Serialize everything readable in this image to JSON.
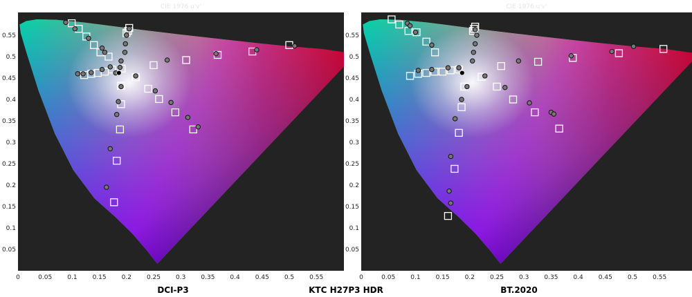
{
  "figure": {
    "caption_center": "KTC H27P3 HDR"
  },
  "chart_data": [
    {
      "type": "scatter",
      "title": "CIE 1976 u'v'",
      "caption": "DCI-P3",
      "xlim": [
        0,
        0.6
      ],
      "ylim": [
        0,
        0.6
      ],
      "x_ticks": [
        "0",
        "0.05",
        "0.1",
        "0.15",
        "0.2",
        "0.25",
        "0.3",
        "0.35",
        "0.4",
        "0.45",
        "0.5",
        "0.55"
      ],
      "y_ticks": [
        "0.05",
        "0.1",
        "0.15",
        "0.2",
        "0.25",
        "0.3",
        "0.35",
        "0.4",
        "0.45",
        "0.5",
        "0.55"
      ],
      "background_color": "#232323",
      "series": [
        {
          "marker": "square",
          "points": [
            [
              0.099,
              0.578
            ],
            [
              0.112,
              0.565
            ],
            [
              0.126,
              0.547
            ],
            [
              0.14,
              0.527
            ],
            [
              0.152,
              0.51
            ],
            [
              0.167,
              0.5
            ],
            [
              0.122,
              0.457
            ],
            [
              0.135,
              0.46
            ],
            [
              0.147,
              0.462
            ],
            [
              0.16,
              0.465
            ],
            [
              0.173,
              0.47
            ],
            [
              0.191,
              0.472
            ],
            [
              0.205,
              0.567
            ],
            [
              0.203,
              0.56
            ],
            [
              0.2,
              0.555
            ],
            [
              0.19,
              0.432
            ],
            [
              0.19,
              0.389
            ],
            [
              0.188,
              0.33
            ],
            [
              0.182,
              0.257
            ],
            [
              0.177,
              0.16
            ],
            [
              0.217,
              0.452
            ],
            [
              0.25,
              0.48
            ],
            [
              0.31,
              0.492
            ],
            [
              0.368,
              0.504
            ],
            [
              0.432,
              0.512
            ],
            [
              0.5,
              0.527
            ],
            [
              0.24,
              0.425
            ],
            [
              0.26,
              0.401
            ],
            [
              0.29,
              0.37
            ],
            [
              0.323,
              0.33
            ]
          ]
        },
        {
          "marker": "circle",
          "points": [
            [
              0.088,
              0.58
            ],
            [
              0.105,
              0.565
            ],
            [
              0.13,
              0.543
            ],
            [
              0.155,
              0.52
            ],
            [
              0.16,
              0.51
            ],
            [
              0.11,
              0.46
            ],
            [
              0.12,
              0.46
            ],
            [
              0.135,
              0.463
            ],
            [
              0.155,
              0.47
            ],
            [
              0.17,
              0.476
            ],
            [
              0.18,
              0.462
            ],
            [
              0.205,
              0.565
            ],
            [
              0.2,
              0.55
            ],
            [
              0.198,
              0.53
            ],
            [
              0.197,
              0.51
            ],
            [
              0.19,
              0.49
            ],
            [
              0.19,
              0.43
            ],
            [
              0.185,
              0.395
            ],
            [
              0.182,
              0.365
            ],
            [
              0.17,
              0.285
            ],
            [
              0.163,
              0.195
            ],
            [
              0.217,
              0.455
            ],
            [
              0.275,
              0.492
            ],
            [
              0.365,
              0.507
            ],
            [
              0.44,
              0.516
            ],
            [
              0.51,
              0.525
            ],
            [
              0.253,
              0.42
            ],
            [
              0.282,
              0.393
            ],
            [
              0.313,
              0.358
            ],
            [
              0.332,
              0.336
            ],
            [
              0.188,
              0.475
            ]
          ]
        },
        {
          "marker": "dot",
          "points": [
            [
              0.186,
              0.462
            ]
          ]
        }
      ]
    },
    {
      "type": "scatter",
      "title": "CIE 1976 u'v'",
      "caption": "BT.2020",
      "xlim": [
        0,
        0.6
      ],
      "ylim": [
        0,
        0.6
      ],
      "x_ticks": [
        "0",
        "0.05",
        "0.1",
        "0.15",
        "0.2",
        "0.25",
        "0.3",
        "0.35",
        "0.4",
        "0.45",
        "0.5",
        "0.55"
      ],
      "y_ticks": [
        "0.05",
        "0.1",
        "0.15",
        "0.2",
        "0.25",
        "0.3",
        "0.35",
        "0.4",
        "0.45",
        "0.5",
        "0.55"
      ],
      "background_color": "#232323",
      "series": [
        {
          "marker": "square",
          "points": [
            [
              0.056,
              0.587
            ],
            [
              0.07,
              0.575
            ],
            [
              0.087,
              0.56
            ],
            [
              0.102,
              0.557
            ],
            [
              0.12,
              0.535
            ],
            [
              0.136,
              0.51
            ],
            [
              0.09,
              0.455
            ],
            [
              0.105,
              0.46
            ],
            [
              0.12,
              0.462
            ],
            [
              0.135,
              0.465
            ],
            [
              0.15,
              0.465
            ],
            [
              0.165,
              0.468
            ],
            [
              0.18,
              0.47
            ],
            [
              0.21,
              0.57
            ],
            [
              0.208,
              0.565
            ],
            [
              0.206,
              0.56
            ],
            [
              0.19,
              0.43
            ],
            [
              0.185,
              0.382
            ],
            [
              0.18,
              0.322
            ],
            [
              0.172,
              0.238
            ],
            [
              0.16,
              0.128
            ],
            [
              0.222,
              0.453
            ],
            [
              0.258,
              0.478
            ],
            [
              0.326,
              0.488
            ],
            [
              0.39,
              0.497
            ],
            [
              0.475,
              0.508
            ],
            [
              0.557,
              0.518
            ],
            [
              0.25,
              0.43
            ],
            [
              0.28,
              0.4
            ],
            [
              0.32,
              0.37
            ],
            [
              0.365,
              0.332
            ]
          ]
        },
        {
          "marker": "circle",
          "points": [
            [
              0.085,
              0.578
            ],
            [
              0.09,
              0.572
            ],
            [
              0.1,
              0.557
            ],
            [
              0.13,
              0.527
            ],
            [
              0.105,
              0.468
            ],
            [
              0.13,
              0.47
            ],
            [
              0.16,
              0.474
            ],
            [
              0.21,
              0.563
            ],
            [
              0.213,
              0.55
            ],
            [
              0.21,
              0.53
            ],
            [
              0.207,
              0.51
            ],
            [
              0.205,
              0.49
            ],
            [
              0.195,
              0.43
            ],
            [
              0.185,
              0.4
            ],
            [
              0.173,
              0.355
            ],
            [
              0.165,
              0.267
            ],
            [
              0.162,
              0.186
            ],
            [
              0.165,
              0.158
            ],
            [
              0.228,
              0.455
            ],
            [
              0.29,
              0.49
            ],
            [
              0.387,
              0.502
            ],
            [
              0.462,
              0.512
            ],
            [
              0.502,
              0.524
            ],
            [
              0.265,
              0.428
            ],
            [
              0.31,
              0.392
            ],
            [
              0.35,
              0.37
            ],
            [
              0.355,
              0.366
            ],
            [
              0.18,
              0.474
            ]
          ]
        },
        {
          "marker": "dot",
          "points": [
            [
              0.186,
              0.462
            ]
          ]
        }
      ]
    }
  ]
}
